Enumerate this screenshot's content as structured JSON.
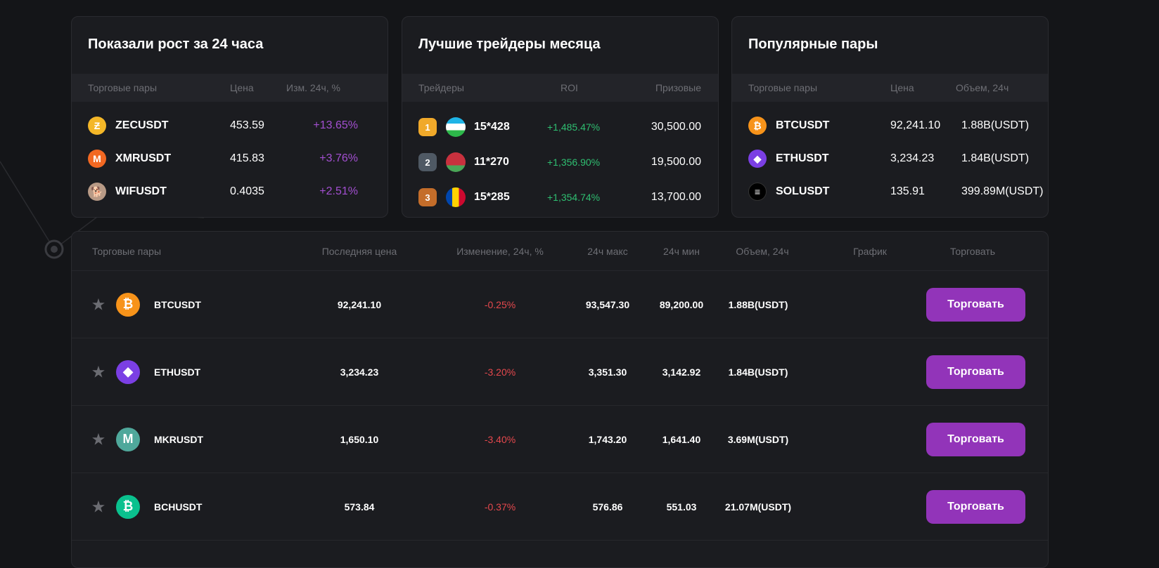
{
  "gainers": {
    "title": "Показали рост за 24 часа",
    "headers": [
      "Торговые пары",
      "Цена",
      "Изм. 24ч, %"
    ],
    "rows": [
      {
        "pair": "ZECUSDT",
        "price": "453.59",
        "change": "+13.65%",
        "icon": "zcash-icon",
        "color": "#f4b728",
        "glyph": "Ƶ"
      },
      {
        "pair": "XMRUSDT",
        "price": "415.83",
        "change": "+3.76%",
        "icon": "monero-icon",
        "color": "#f26822",
        "glyph": "M"
      },
      {
        "pair": "WIFUSDT",
        "price": "0.4035",
        "change": "+2.51%",
        "icon": "dogwifhat-icon",
        "color": "#b89a86",
        "glyph": "🐕"
      }
    ]
  },
  "traders": {
    "title": "Лучшие трейдеры месяца",
    "headers": [
      "Трейдеры",
      "ROI",
      "Призовые"
    ],
    "rows": [
      {
        "rank": "1",
        "name": "15*428",
        "roi": "+1,485.47%",
        "prize": "30,500.00",
        "medal_color": "#f0a92a",
        "flag": "uzbekistan-flag-icon"
      },
      {
        "rank": "2",
        "name": "11*270",
        "roi": "+1,356.90%",
        "prize": "19,500.00",
        "medal_color": "#4f5964",
        "flag": "belarus-flag-icon"
      },
      {
        "rank": "3",
        "name": "15*285",
        "roi": "+1,354.74%",
        "prize": "13,700.00",
        "medal_color": "#c46d2a",
        "flag": "moldova-flag-icon"
      }
    ]
  },
  "popular": {
    "title": "Популярные пары",
    "headers": [
      "Торговые пары",
      "Цена",
      "Объем, 24ч"
    ],
    "rows": [
      {
        "pair": "BTCUSDT",
        "price": "92,241.10",
        "volume": "1.88B(USDT)",
        "icon": "bitcoin-icon",
        "color": "#f7931a",
        "glyph": "₿"
      },
      {
        "pair": "ETHUSDT",
        "price": "3,234.23",
        "volume": "1.84B(USDT)",
        "icon": "ethereum-icon",
        "color": "#7b3fe4",
        "glyph": "◆"
      },
      {
        "pair": "SOLUSDT",
        "price": "135.91",
        "volume": "399.89M(USDT)",
        "icon": "solana-icon",
        "color": "#000000",
        "glyph": "≡"
      }
    ]
  },
  "market": {
    "headers": [
      "Торговые пары",
      "Последняя цена",
      "Изменение, 24ч, %",
      "24ч макс",
      "24ч мин",
      "Объем, 24ч",
      "График",
      "Торговать"
    ],
    "trade_label": "Торговать",
    "rows": [
      {
        "pair": "BTCUSDT",
        "last": "92,241.10",
        "change": "-0.25%",
        "high": "93,547.30",
        "low": "89,200.00",
        "volume": "1.88B(USDT)",
        "icon": "bitcoin-icon",
        "color": "#f7931a",
        "glyph": "₿"
      },
      {
        "pair": "ETHUSDT",
        "last": "3,234.23",
        "change": "-3.20%",
        "high": "3,351.30",
        "low": "3,142.92",
        "volume": "1.84B(USDT)",
        "icon": "ethereum-icon",
        "color": "#7b3fe4",
        "glyph": "◆"
      },
      {
        "pair": "MKRUSDT",
        "last": "1,650.10",
        "change": "-3.40%",
        "high": "1,743.20",
        "low": "1,641.40",
        "volume": "3.69M(USDT)",
        "icon": "maker-icon",
        "color": "#4fa89b",
        "glyph": "M"
      },
      {
        "pair": "BCHUSDT",
        "last": "573.84",
        "change": "-0.37%",
        "high": "576.86",
        "low": "551.03",
        "volume": "21.07M(USDT)",
        "icon": "bitcoin-cash-icon",
        "color": "#0ac18e",
        "glyph": "₿"
      }
    ]
  },
  "colors": {
    "accent": "#9234b9",
    "positive_purple": "#a34fd1",
    "positive_green": "#2fbf71",
    "negative": "#e5484d"
  }
}
